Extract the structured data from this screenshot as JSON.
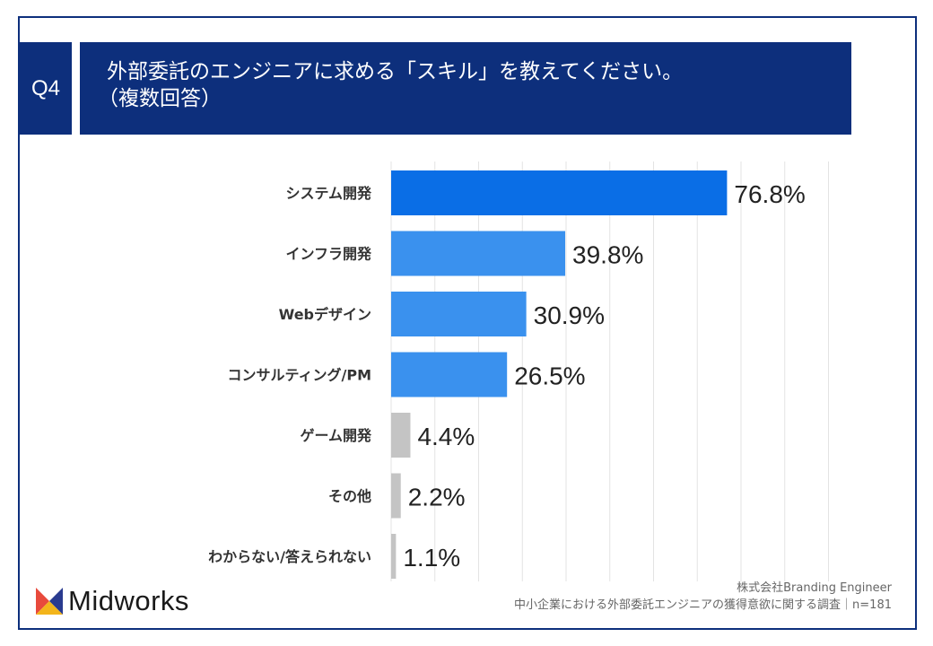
{
  "header": {
    "question_label": "Q4",
    "title_line1": "外部委託のエンジニアに求める「スキル」を教えてください。",
    "title_line2": "（複数回答）"
  },
  "chart_data": {
    "type": "bar",
    "orientation": "horizontal",
    "categories": [
      "システム開発",
      "インフラ開発",
      "Webデザイン",
      "コンサルティング/PM",
      "ゲーム開発",
      "その他",
      "わからない/答えられない"
    ],
    "values": [
      76.8,
      39.8,
      30.9,
      26.5,
      4.4,
      2.2,
      1.1
    ],
    "value_labels": [
      "76.8%",
      "39.8%",
      "30.9%",
      "26.5%",
      "4.4%",
      "2.2%",
      "1.1%"
    ],
    "unit": "%",
    "xlim": [
      0,
      100
    ],
    "grid": true,
    "colors": {
      "top": "#0a6ee6",
      "highlight": "#3a91ee",
      "other": "#c4c4c4",
      "grid": "#e3e3e3",
      "frame": "#0d2f7c"
    },
    "color_groups": [
      "top",
      "highlight",
      "highlight",
      "highlight",
      "other",
      "other",
      "other"
    ]
  },
  "brand": {
    "logo_text": "Midworks",
    "logo_icon": "midworks-m-icon",
    "logo_colors": [
      "#e84a3c",
      "#2a3b8f",
      "#f3b51b"
    ]
  },
  "footer": {
    "company": "株式会社Branding Engineer",
    "survey": "中小企業における外部委託エンジニアの獲得意欲に関する調査｜n=181"
  }
}
